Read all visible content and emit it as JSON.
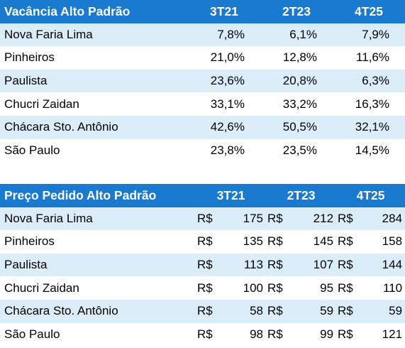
{
  "vacancy": {
    "title": "Vacância Alto Padrão",
    "periods": [
      "3T21",
      "2T23",
      "4T25"
    ],
    "rows": [
      {
        "region": "Nova Faria Lima",
        "values": [
          "7,8%",
          "6,1%",
          "7,9%"
        ]
      },
      {
        "region": "Pinheiros",
        "values": [
          "21,0%",
          "12,8%",
          "11,6%"
        ]
      },
      {
        "region": "Paulista",
        "values": [
          "23,6%",
          "20,8%",
          "6,3%"
        ]
      },
      {
        "region": "Chucri Zaidan",
        "values": [
          "33,1%",
          "33,2%",
          "16,3%"
        ]
      },
      {
        "region": "Chácara Sto. Antônio",
        "values": [
          "42,6%",
          "50,5%",
          "32,1%"
        ]
      },
      {
        "region": "São Paulo",
        "values": [
          "23,8%",
          "23,5%",
          "14,5%"
        ]
      }
    ]
  },
  "price": {
    "title": "Preço Pedido Alto Padrão",
    "periods": [
      "3T21",
      "2T23",
      "4T25"
    ],
    "currency": "R$",
    "rows": [
      {
        "region": "Nova Faria Lima",
        "values": [
          "175",
          "212",
          "284"
        ]
      },
      {
        "region": "Pinheiros",
        "values": [
          "135",
          "145",
          "158"
        ]
      },
      {
        "region": "Paulista",
        "values": [
          "113",
          "107",
          "144"
        ]
      },
      {
        "region": "Chucri Zaidan",
        "values": [
          "100",
          "95",
          "110"
        ]
      },
      {
        "region": "Chácara Sto. Antônio",
        "values": [
          "58",
          "59",
          "59"
        ]
      },
      {
        "region": "São Paulo",
        "values": [
          "98",
          "99",
          "121"
        ]
      }
    ]
  }
}
